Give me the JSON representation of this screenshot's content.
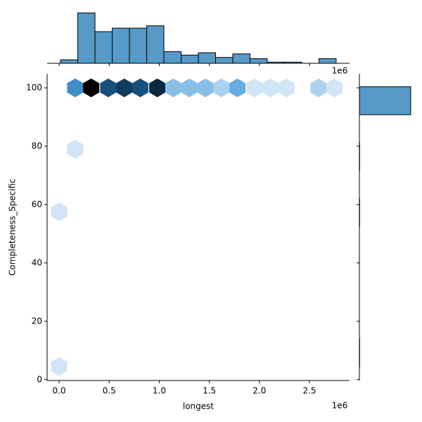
{
  "chart_data": {
    "type": "hexbin",
    "x_label": "longest",
    "y_label": "Completeness_Specific",
    "x_offset_label": "1e6",
    "top_x_offset_label": "1e6",
    "xlim": [
      -0.12,
      2.9
    ],
    "ylim": [
      -0.3,
      104.8
    ],
    "xticks": [
      {
        "value": 0,
        "label": "0.0"
      },
      {
        "value": 0.5,
        "label": "0.5"
      },
      {
        "value": 1,
        "label": "1.0"
      },
      {
        "value": 1.5,
        "label": "1.5"
      },
      {
        "value": 2,
        "label": "2.0"
      },
      {
        "value": 2.5,
        "label": "2.5"
      }
    ],
    "yticks": [
      0,
      20,
      40,
      60,
      80,
      100
    ],
    "cmap": [
      "#f4f8fd",
      "#4fa0dd",
      "#1a5e92",
      "#000000"
    ],
    "hexes": {
      "x": [
        0.16,
        0.32,
        0.49,
        0.65,
        0.81,
        0.98,
        1.14,
        1.3,
        1.46,
        1.62,
        1.78,
        1.95,
        2.11,
        2.27,
        2.59,
        2.75,
        0.16,
        0,
        0
      ],
      "y": [
        100,
        100,
        100,
        100,
        100,
        100,
        100,
        100,
        100,
        100,
        100,
        100,
        100,
        100,
        100,
        100,
        79,
        57.5,
        4.5
      ],
      "counts": [
        6,
        14,
        10,
        11,
        10,
        12,
        3,
        3,
        3,
        2,
        4,
        1,
        1,
        1,
        2,
        1,
        1,
        1,
        1
      ]
    },
    "top_histogram": {
      "color": "#5799c7",
      "bins": [
        0.014,
        0.186,
        0.358,
        0.53,
        0.702,
        0.874,
        1.046,
        1.218,
        1.39,
        1.562,
        1.734,
        1.906,
        2.078,
        2.25,
        2.422,
        2.594,
        2.766
      ],
      "counts": [
        3,
        43,
        27,
        30,
        30,
        32,
        10,
        7,
        9,
        5,
        8,
        4,
        1,
        1,
        0,
        4
      ],
      "ylim": [
        0,
        45
      ]
    },
    "right_histogram": {
      "color": "#5799c7",
      "bins": [
        4.4,
        14,
        23.6,
        33.2,
        42.8,
        52.4,
        62,
        71.6,
        81.2,
        90.8,
        100.4
      ],
      "counts": [
        1,
        0,
        0,
        0,
        0,
        1,
        0,
        1,
        0,
        211
      ],
      "xlim": [
        0,
        217
      ]
    }
  }
}
